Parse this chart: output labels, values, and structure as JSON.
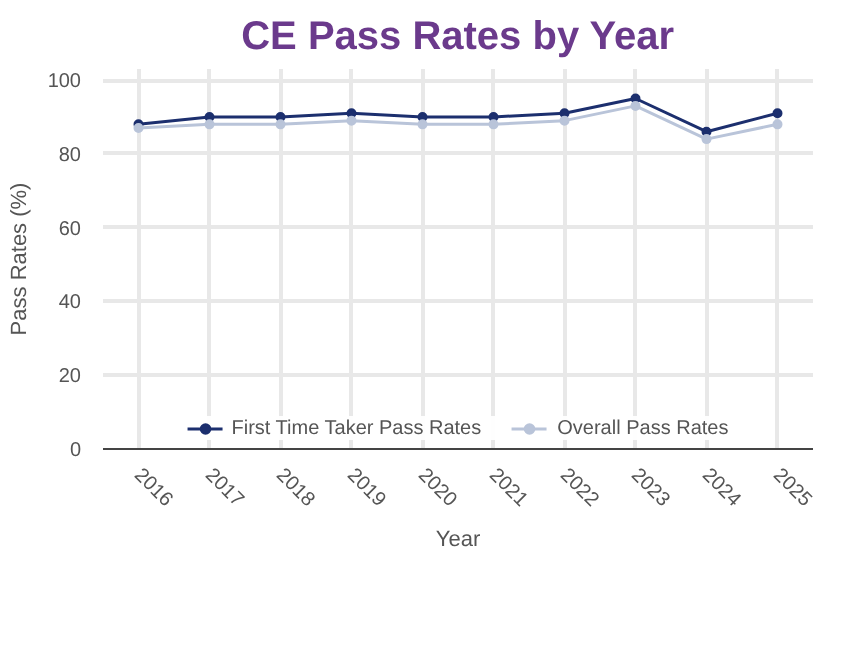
{
  "chart_data": {
    "type": "line",
    "title": "CE Pass Rates by Year",
    "xlabel": "Year",
    "ylabel": "Pass Rates (%)",
    "categories": [
      "2016",
      "2017",
      "2018",
      "2019",
      "2020",
      "2021",
      "2022",
      "2023",
      "2024",
      "2025"
    ],
    "series": [
      {
        "name": "First Time Taker Pass Rates",
        "color": "#1c2f6e",
        "values": [
          88,
          90,
          90,
          91,
          90,
          90,
          91,
          95,
          86,
          91
        ]
      },
      {
        "name": "Overall Pass Rates",
        "color": "#b9c4d9",
        "values": [
          87,
          88,
          88,
          89,
          88,
          88,
          89,
          93,
          84,
          88
        ]
      }
    ],
    "ylim": [
      0,
      103
    ],
    "yticks": [
      0,
      20,
      40,
      60,
      80,
      100
    ],
    "grid": true,
    "legend": "bottom",
    "marker": "circle",
    "line_style": "solid"
  }
}
